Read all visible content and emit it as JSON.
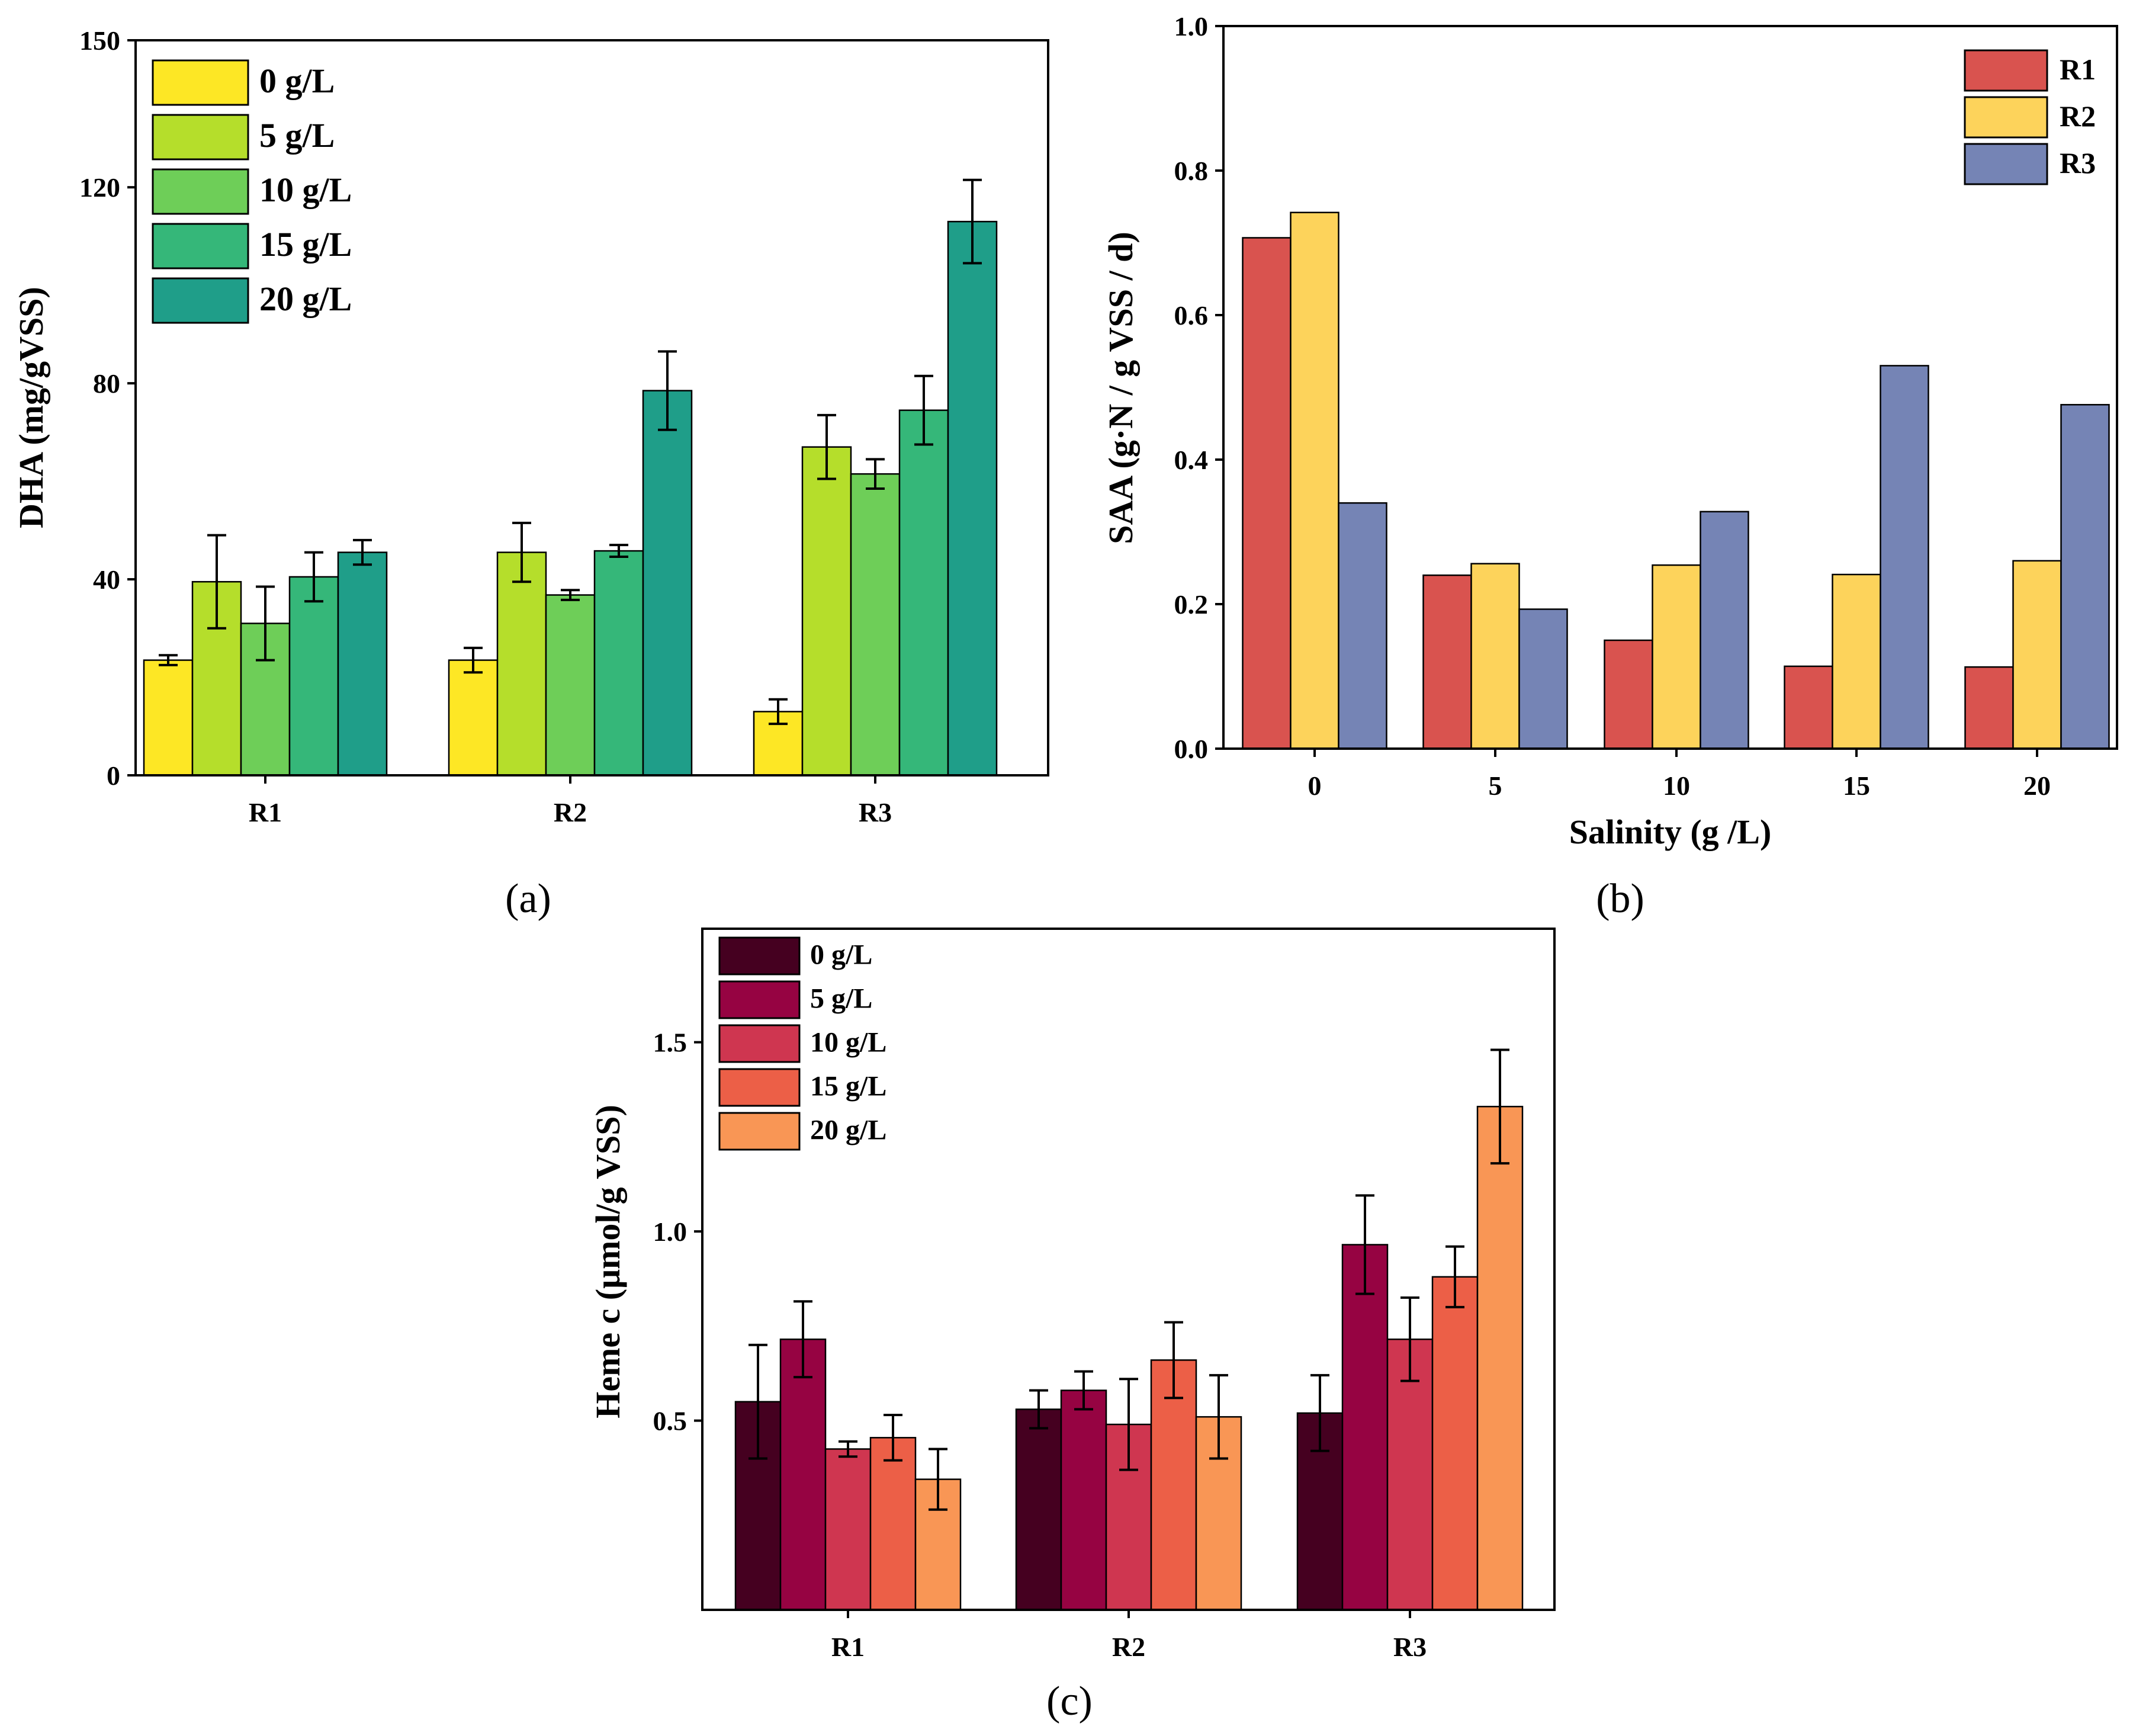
{
  "chart_data": [
    {
      "id": "a",
      "type": "bar",
      "panel_label": "(a)",
      "categories": [
        "R1",
        "R2",
        "R3"
      ],
      "ylabel": "DHA (mg/gVSS)",
      "xlabel": "",
      "ylim": [
        0,
        150
      ],
      "yticks": [
        0,
        40,
        80,
        120,
        150
      ],
      "legend_position": "top-left",
      "series": [
        {
          "name": "0 g/L",
          "color": "#fde725",
          "values": [
            23.5,
            23.5,
            13.0
          ],
          "errors": [
            1.0,
            2.5,
            2.5
          ]
        },
        {
          "name": "5 g/L",
          "color": "#b5de2b",
          "values": [
            39.5,
            45.5,
            67.0
          ],
          "errors": [
            9.5,
            6.0,
            6.5
          ]
        },
        {
          "name": "10 g/L",
          "color": "#6ece58",
          "values": [
            31.0,
            36.8,
            61.5
          ],
          "errors": [
            7.5,
            1.0,
            3.0
          ]
        },
        {
          "name": "15 g/L",
          "color": "#35b779",
          "values": [
            40.5,
            45.8,
            74.5
          ],
          "errors": [
            5.0,
            1.2,
            7.0
          ]
        },
        {
          "name": "20 g/L",
          "color": "#1f9e89",
          "values": [
            45.5,
            78.5,
            113.0
          ],
          "errors": [
            2.5,
            8.0,
            8.5
          ]
        }
      ]
    },
    {
      "id": "b",
      "type": "bar",
      "panel_label": "(b)",
      "categories": [
        "0",
        "5",
        "10",
        "15",
        "20"
      ],
      "xlabel": "Salinity (g /L)",
      "ylabel": "SAA  (g·N / g VSS / d)",
      "ylim": [
        0,
        1.0
      ],
      "yticks": [
        "0.0",
        "0.2",
        "0.4",
        "0.6",
        "0.8",
        "1.0"
      ],
      "legend_position": "top-right",
      "series": [
        {
          "name": "R1",
          "color": "#d9534f",
          "values": [
            0.707,
            0.24,
            0.15,
            0.114,
            0.113
          ]
        },
        {
          "name": "R2",
          "color": "#fdd35b",
          "values": [
            0.742,
            0.256,
            0.254,
            0.241,
            0.26
          ]
        },
        {
          "name": "R3",
          "color": "#7584b5",
          "values": [
            0.34,
            0.193,
            0.328,
            0.53,
            0.476
          ]
        }
      ]
    },
    {
      "id": "c",
      "type": "bar",
      "panel_label": "(c)",
      "categories": [
        "R1",
        "R2",
        "R3"
      ],
      "ylabel": "Heme c (μmol/g VSS)",
      "xlabel": "",
      "ylim": [
        0,
        1.8
      ],
      "yticks": [
        "0.5",
        "1.0",
        "1.5"
      ],
      "legend_position": "top-left",
      "series": [
        {
          "name": "0 g/L",
          "color": "#450020",
          "values": [
            0.55,
            0.53,
            0.52
          ],
          "errors": [
            0.15,
            0.05,
            0.1
          ]
        },
        {
          "name": "5 g/L",
          "color": "#960342",
          "values": [
            0.715,
            0.58,
            0.965
          ],
          "errors": [
            0.1,
            0.05,
            0.13
          ]
        },
        {
          "name": "10 g/L",
          "color": "#cf3650",
          "values": [
            0.425,
            0.49,
            0.715
          ],
          "errors": [
            0.02,
            0.12,
            0.11
          ]
        },
        {
          "name": "15 g/L",
          "color": "#ec5f47",
          "values": [
            0.455,
            0.66,
            0.88
          ],
          "errors": [
            0.06,
            0.1,
            0.08
          ]
        },
        {
          "name": "20 g/L",
          "color": "#f99655",
          "values": [
            0.345,
            0.51,
            1.33
          ],
          "errors": [
            0.08,
            0.11,
            0.15
          ]
        }
      ]
    }
  ]
}
